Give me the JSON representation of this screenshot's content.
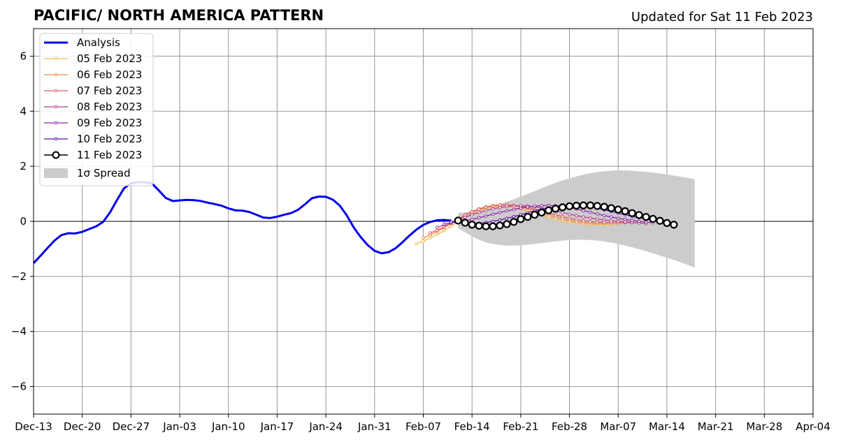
{
  "chart_data": {
    "type": "line",
    "title": "PACIFIC/ NORTH AMERICA PATTERN",
    "subtitle": "Updated for Sat 11 Feb 2023",
    "xlabel": "",
    "ylabel": "",
    "x_range": [
      "2022-12-13",
      "2023-04-04"
    ],
    "ylim": [
      -7,
      7
    ],
    "grid": true,
    "legend_position": "top-left",
    "x_tick_labels": [
      "Dec-13",
      "Dec-20",
      "Dec-27",
      "Jan-03",
      "Jan-10",
      "Jan-17",
      "Jan-24",
      "Jan-31",
      "Feb-07",
      "Feb-14",
      "Feb-21",
      "Feb-28",
      "Mar-07",
      "Mar-14",
      "Mar-21",
      "Mar-28",
      "Apr-04"
    ],
    "y_ticks": [
      -6,
      -4,
      -2,
      0,
      2,
      4,
      6
    ],
    "y_tick_labels": [
      "−6",
      "−4",
      "−2",
      "0",
      "2",
      "4",
      "6"
    ],
    "series": [
      {
        "name": "Analysis",
        "color": "#0000ee",
        "x": [
          "2022-12-13",
          "2022-12-14",
          "2022-12-15",
          "2022-12-16",
          "2022-12-17",
          "2022-12-18",
          "2022-12-19",
          "2022-12-20",
          "2022-12-21",
          "2022-12-22",
          "2022-12-23",
          "2022-12-24",
          "2022-12-25",
          "2022-12-26",
          "2022-12-27",
          "2022-12-28",
          "2022-12-29",
          "2022-12-30",
          "2022-12-31",
          "2023-01-01",
          "2023-01-02",
          "2023-01-03",
          "2023-01-04",
          "2023-01-05",
          "2023-01-06",
          "2023-01-07",
          "2023-01-08",
          "2023-01-09",
          "2023-01-10",
          "2023-01-11",
          "2023-01-12",
          "2023-01-13",
          "2023-01-14",
          "2023-01-15",
          "2023-01-16",
          "2023-01-17",
          "2023-01-18",
          "2023-01-19",
          "2023-01-20",
          "2023-01-21",
          "2023-01-22",
          "2023-01-23",
          "2023-01-24",
          "2023-01-25",
          "2023-01-26",
          "2023-01-27",
          "2023-01-28",
          "2023-01-29",
          "2023-01-30",
          "2023-01-31",
          "2023-02-01",
          "2023-02-02",
          "2023-02-03",
          "2023-02-04",
          "2023-02-05",
          "2023-02-06",
          "2023-02-07",
          "2023-02-08",
          "2023-02-09",
          "2023-02-10",
          "2023-02-11"
        ],
        "values": [
          -1.52,
          -1.25,
          -0.97,
          -0.7,
          -0.5,
          -0.43,
          -0.44,
          -0.38,
          -0.28,
          -0.18,
          -0.02,
          0.33,
          0.78,
          1.2,
          1.38,
          1.42,
          1.42,
          1.38,
          1.12,
          0.85,
          0.74,
          0.76,
          0.78,
          0.77,
          0.74,
          0.68,
          0.63,
          0.57,
          0.47,
          0.4,
          0.39,
          0.34,
          0.24,
          0.14,
          0.12,
          0.17,
          0.24,
          0.3,
          0.42,
          0.62,
          0.84,
          0.9,
          0.89,
          0.79,
          0.57,
          0.22,
          -0.22,
          -0.57,
          -0.86,
          -1.07,
          -1.16,
          -1.12,
          -0.98,
          -0.76,
          -0.52,
          -0.3,
          -0.13,
          -0.02,
          0.04,
          0.05,
          0.03
        ]
      },
      {
        "name": "05 Feb 2023",
        "color": "#f5b840",
        "x_start": "2023-02-06",
        "values": [
          -0.82,
          -0.72,
          -0.6,
          -0.47,
          -0.34,
          -0.18,
          -0.02,
          0.14,
          0.28,
          0.39,
          0.47,
          0.52,
          0.54,
          0.53,
          0.5,
          0.45,
          0.38,
          0.31,
          0.23,
          0.16,
          0.09,
          0.03,
          -0.02,
          -0.06,
          -0.09,
          -0.11,
          -0.12,
          -0.11,
          -0.1,
          -0.08,
          -0.06
        ]
      },
      {
        "name": "06 Feb 2023",
        "color": "#ef8a4a",
        "x_start": "2023-02-07",
        "values": [
          -0.6,
          -0.49,
          -0.37,
          -0.23,
          -0.08,
          0.08,
          0.23,
          0.36,
          0.46,
          0.53,
          0.58,
          0.6,
          0.6,
          0.57,
          0.52,
          0.46,
          0.39,
          0.31,
          0.23,
          0.16,
          0.09,
          0.04,
          -0.01,
          -0.04,
          -0.06,
          -0.07,
          -0.07,
          -0.06,
          -0.05,
          -0.04,
          -0.03
        ]
      },
      {
        "name": "07 Feb 2023",
        "color": "#dd5a6e",
        "x_start": "2023-02-08",
        "values": [
          -0.42,
          -0.32,
          -0.2,
          -0.06,
          0.09,
          0.22,
          0.34,
          0.44,
          0.51,
          0.56,
          0.59,
          0.6,
          0.58,
          0.55,
          0.5,
          0.44,
          0.37,
          0.3,
          0.23,
          0.17,
          0.11,
          0.06,
          0.02,
          -0.01,
          -0.03,
          -0.04,
          -0.05,
          -0.05,
          -0.05,
          -0.05,
          -0.05
        ]
      },
      {
        "name": "08 Feb 2023",
        "color": "#b5418a",
        "x_start": "2023-02-09",
        "values": [
          -0.22,
          -0.13,
          -0.04,
          0.06,
          0.15,
          0.24,
          0.32,
          0.39,
          0.45,
          0.5,
          0.54,
          0.56,
          0.57,
          0.56,
          0.53,
          0.49,
          0.44,
          0.38,
          0.32,
          0.26,
          0.21,
          0.16,
          0.12,
          0.08,
          0.05,
          0.02,
          0.0,
          -0.02,
          -0.04,
          -0.06,
          -0.08
        ]
      },
      {
        "name": "09 Feb 2023",
        "color": "#8f21a6",
        "x_start": "2023-02-10",
        "values": [
          -0.1,
          -0.06,
          -0.02,
          0.02,
          0.07,
          0.13,
          0.19,
          0.26,
          0.32,
          0.38,
          0.43,
          0.48,
          0.52,
          0.55,
          0.57,
          0.58,
          0.57,
          0.54,
          0.5,
          0.45,
          0.39,
          0.33,
          0.27,
          0.21,
          0.16,
          0.11,
          0.07,
          0.03,
          0.0,
          -0.03,
          -0.05
        ]
      },
      {
        "name": "10 Feb 2023",
        "color": "#5a12a3",
        "x_start": "2023-02-11",
        "values": [
          -0.02,
          -0.05,
          -0.07,
          -0.08,
          -0.07,
          -0.04,
          0.0,
          0.05,
          0.11,
          0.17,
          0.24,
          0.31,
          0.38,
          0.44,
          0.49,
          0.53,
          0.56,
          0.58,
          0.58,
          0.56,
          0.53,
          0.48,
          0.42,
          0.36,
          0.3,
          0.24,
          0.18,
          0.13,
          0.08,
          0.04,
          0.0
        ]
      },
      {
        "name": "11 Feb 2023",
        "color": "#000000",
        "x_start": "2023-02-12",
        "values": [
          0.03,
          -0.05,
          -0.12,
          -0.16,
          -0.18,
          -0.18,
          -0.15,
          -0.1,
          -0.02,
          0.08,
          0.16,
          0.24,
          0.32,
          0.4,
          0.46,
          0.51,
          0.55,
          0.57,
          0.58,
          0.58,
          0.56,
          0.53,
          0.48,
          0.43,
          0.37,
          0.3,
          0.23,
          0.16,
          0.09,
          0.02,
          -0.06,
          -0.12
        ]
      }
    ],
    "spread": {
      "name": "1σ Spread",
      "color": "#cccccc",
      "x_start": "2023-02-12",
      "x_end": "2023-03-18",
      "upper": [
        0.3,
        0.33,
        0.38,
        0.44,
        0.5,
        0.57,
        0.64,
        0.72,
        0.8,
        0.9,
        1.0,
        1.1,
        1.2,
        1.3,
        1.4,
        1.48,
        1.56,
        1.63,
        1.7,
        1.75,
        1.79,
        1.82,
        1.84,
        1.85,
        1.85,
        1.84,
        1.82,
        1.8,
        1.77,
        1.74,
        1.7,
        1.66,
        1.62,
        1.58,
        1.53
      ],
      "lower": [
        -0.25,
        -0.4,
        -0.55,
        -0.67,
        -0.76,
        -0.82,
        -0.86,
        -0.88,
        -0.88,
        -0.87,
        -0.85,
        -0.82,
        -0.79,
        -0.76,
        -0.73,
        -0.7,
        -0.68,
        -0.67,
        -0.67,
        -0.68,
        -0.7,
        -0.73,
        -0.77,
        -0.82,
        -0.88,
        -0.94,
        -1.01,
        -1.08,
        -1.16,
        -1.24,
        -1.32,
        -1.4,
        -1.49,
        -1.58,
        -1.68
      ]
    }
  }
}
